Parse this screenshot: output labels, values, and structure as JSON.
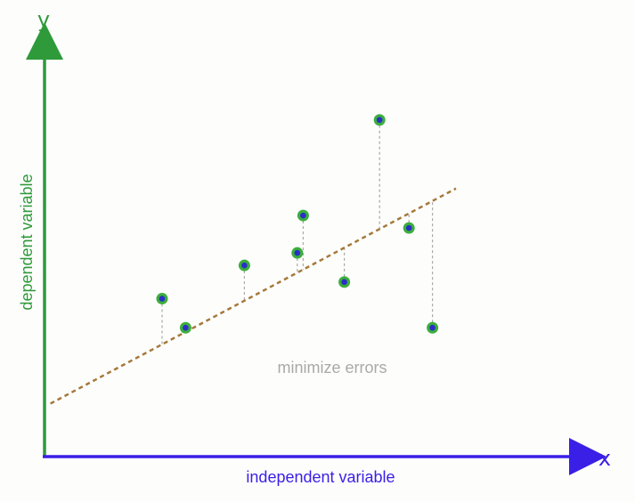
{
  "colors": {
    "y_axis": "#2e9a3a",
    "x_axis": "#3a1fe6",
    "trend_line": "#a5793a",
    "residual": "#a8a8a8",
    "point_outer": "#3cae3c",
    "point_inner": "#2b2fc8",
    "annotation": "#a9a9a9",
    "background": "#fdfdfc"
  },
  "y_axis": {
    "letter": "y",
    "label": "dependent variable"
  },
  "x_axis": {
    "letter": "x",
    "label": "independent variable"
  },
  "annotation": "minimize errors",
  "chart_data": {
    "type": "scatter",
    "trend_line": {
      "intercept": 0.12,
      "slope": 0.75
    },
    "points": [
      {
        "x": 0.2,
        "y": 0.38
      },
      {
        "x": 0.24,
        "y": 0.31
      },
      {
        "x": 0.34,
        "y": 0.46
      },
      {
        "x": 0.43,
        "y": 0.49
      },
      {
        "x": 0.44,
        "y": 0.58
      },
      {
        "x": 0.51,
        "y": 0.42
      },
      {
        "x": 0.57,
        "y": 0.81
      },
      {
        "x": 0.62,
        "y": 0.55
      },
      {
        "x": 0.66,
        "y": 0.31
      }
    ]
  }
}
